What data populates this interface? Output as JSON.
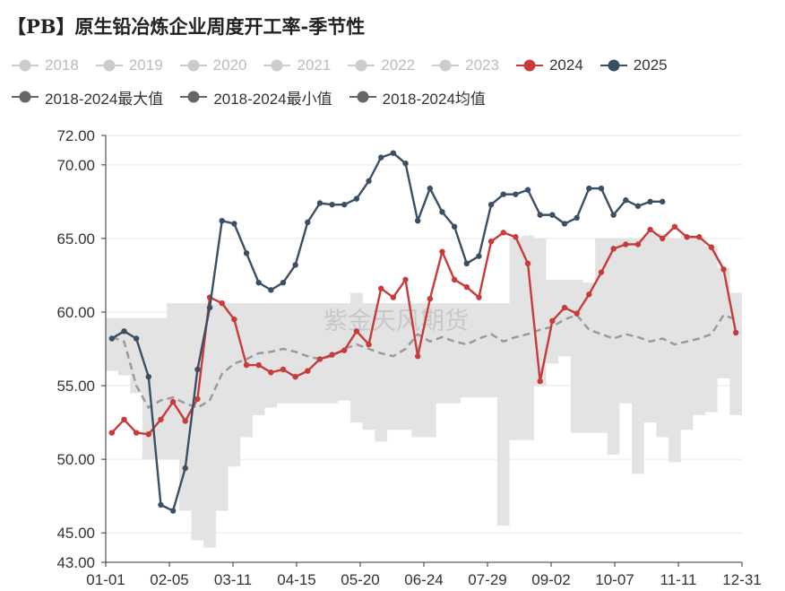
{
  "title": "【PB】原生铅冶炼企业周度开工率-季节性",
  "watermark": "紫金天风期货",
  "legend": [
    {
      "label": "2018",
      "color": "#cccccc",
      "active": false
    },
    {
      "label": "2019",
      "color": "#cccccc",
      "active": false
    },
    {
      "label": "2020",
      "color": "#cccccc",
      "active": false
    },
    {
      "label": "2021",
      "color": "#cccccc",
      "active": false
    },
    {
      "label": "2022",
      "color": "#cccccc",
      "active": false
    },
    {
      "label": "2023",
      "color": "#cccccc",
      "active": false
    },
    {
      "label": "2024",
      "color": "#c93a3a",
      "active": true
    },
    {
      "label": "2025",
      "color": "#3a4f63",
      "active": true
    },
    {
      "label": "2018-2024最大值",
      "color": "#666666",
      "active": true
    },
    {
      "label": "2018-2024最小值",
      "color": "#666666",
      "active": true
    },
    {
      "label": "2018-2024均值",
      "color": "#666666",
      "active": true
    }
  ],
  "chart_data": {
    "type": "line",
    "title": "【PB】原生铅冶炼企业周度开工率-季节性",
    "x_ticks": [
      "01-01",
      "02-05",
      "03-11",
      "04-15",
      "05-20",
      "06-24",
      "07-29",
      "09-02",
      "10-07",
      "11-11",
      "12-31"
    ],
    "y_ticks": [
      "43.00",
      "45.00",
      "50.00",
      "55.00",
      "60.00",
      "65.00",
      "70.00",
      "72.00"
    ],
    "ylim": [
      43,
      72
    ],
    "x_unit": "week",
    "xlim": [
      0,
      52
    ],
    "grid": true,
    "band": {
      "name_max": "2018-2024最大值",
      "name_min": "2018-2024最小值",
      "color": "#e3e3e3",
      "max": [
        59.6,
        59.6,
        59.6,
        59.6,
        59.6,
        60.6,
        60.6,
        60.6,
        60.6,
        60.6,
        60.6,
        60.6,
        60.6,
        60.6,
        60.6,
        60.6,
        60.6,
        60.6,
        60.6,
        60.6,
        61.3,
        60.6,
        60.6,
        60.6,
        60.6,
        60.6,
        60.6,
        60.6,
        60.6,
        60.6,
        60.6,
        60.6,
        60.6,
        65.0,
        65.2,
        65.0,
        62.2,
        62.2,
        62.2,
        62.0,
        65.0,
        65.0,
        65.0,
        65.0,
        65.3,
        65.3,
        65.0,
        65.2,
        65.1,
        64.5,
        63.0,
        61.3
      ],
      "min": [
        56.0,
        55.7,
        54.5,
        50.0,
        50.0,
        50.0,
        46.5,
        44.5,
        44.0,
        46.5,
        49.5,
        51.5,
        53.0,
        53.5,
        53.8,
        53.8,
        53.8,
        53.8,
        53.8,
        54.0,
        52.5,
        52.0,
        51.2,
        52.0,
        52.0,
        51.5,
        51.5,
        53.8,
        53.8,
        54.2,
        54.2,
        54.2,
        45.5,
        51.3,
        51.3,
        55.0,
        56.5,
        57.0,
        51.8,
        51.8,
        51.8,
        50.3,
        53.8,
        49.0,
        52.5,
        51.5,
        49.8,
        52.0,
        53.0,
        53.2,
        55.5,
        53.0
      ]
    },
    "series": [
      {
        "name": "2018-2024均值",
        "color": "#9a9a9a",
        "dashed": true,
        "values": [
          58.3,
          58.0,
          55.0,
          53.5,
          54.0,
          54.2,
          53.8,
          53.5,
          54.0,
          55.8,
          56.5,
          56.8,
          57.2,
          57.3,
          57.5,
          57.3,
          57.0,
          56.8,
          57.0,
          57.5,
          57.8,
          57.5,
          57.2,
          57.0,
          57.5,
          58.5,
          58.0,
          58.3,
          58.0,
          57.8,
          58.2,
          58.5,
          58.0,
          58.3,
          58.5,
          58.8,
          59.0,
          59.5,
          59.8,
          58.8,
          58.5,
          58.2,
          58.5,
          58.3,
          58.0,
          58.2,
          57.8,
          58.0,
          58.2,
          58.5,
          59.8,
          59.5
        ]
      },
      {
        "name": "2024",
        "color": "#c93a3a",
        "values": [
          51.8,
          52.7,
          51.8,
          51.7,
          52.7,
          53.9,
          52.6,
          54.1,
          61.0,
          60.6,
          59.5,
          56.4,
          56.4,
          55.9,
          56.1,
          55.6,
          56.0,
          56.8,
          57.1,
          57.4,
          58.7,
          57.8,
          61.6,
          61.0,
          62.2,
          57.0,
          60.9,
          64.1,
          62.2,
          61.7,
          61.0,
          64.8,
          65.4,
          65.1,
          63.3,
          55.3,
          59.4,
          60.3,
          59.9,
          61.2,
          62.7,
          64.3,
          64.6,
          64.6,
          65.6,
          65.0,
          65.8,
          65.1,
          65.1,
          64.4,
          62.9,
          58.6
        ]
      },
      {
        "name": "2025",
        "color": "#3a4f63",
        "values": [
          58.2,
          58.7,
          58.2,
          55.6,
          46.9,
          46.5,
          49.4,
          56.1,
          60.3,
          66.2,
          66.0,
          64.0,
          62.0,
          61.5,
          62.0,
          63.2,
          66.1,
          67.4,
          67.3,
          67.3,
          67.7,
          68.9,
          70.5,
          70.8,
          70.1,
          66.2,
          68.4,
          66.8,
          65.8,
          63.3,
          63.8,
          67.3,
          68.0,
          68.0,
          68.3,
          66.6,
          66.6,
          66.0,
          66.4,
          68.4,
          68.4,
          66.6,
          67.6,
          67.2,
          67.5,
          67.5
        ]
      }
    ]
  }
}
